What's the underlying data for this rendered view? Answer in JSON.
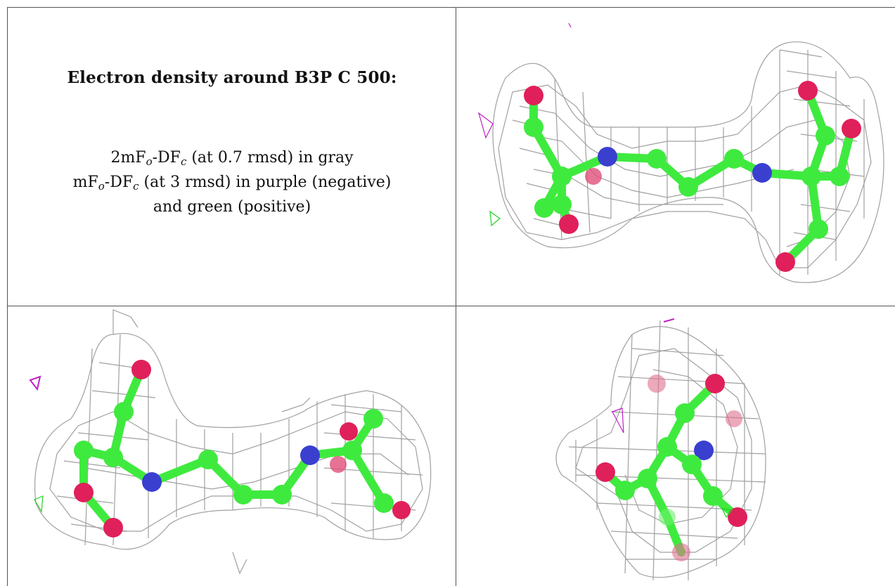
{
  "title": "Electron density around B3P C 500:",
  "line1": {
    "pre": "2mF",
    "sub1": "o",
    "mid": "-DF",
    "sub2": "c",
    "post": " (at 0.7 rmsd) in gray"
  },
  "line2": {
    "pre": "mF",
    "sub1": "o",
    "mid": "-DF",
    "sub2": "c",
    "post": " (at 3 rmsd) in purple (negative)"
  },
  "line3": "and green (positive)",
  "colors": {
    "carbon": "#3fea3f",
    "nitrogen": "#3a3fd0",
    "oxygen": "#e0205a",
    "mesh": "#9a9a9a",
    "negative": "#c020c8",
    "positive": "#20d020",
    "border": "#555555"
  },
  "panels": [
    {
      "name": "view-top-right",
      "desc": "molecule view 1"
    },
    {
      "name": "view-bottom-left",
      "desc": "molecule view 2"
    },
    {
      "name": "view-bottom-right",
      "desc": "molecule view 3"
    }
  ]
}
